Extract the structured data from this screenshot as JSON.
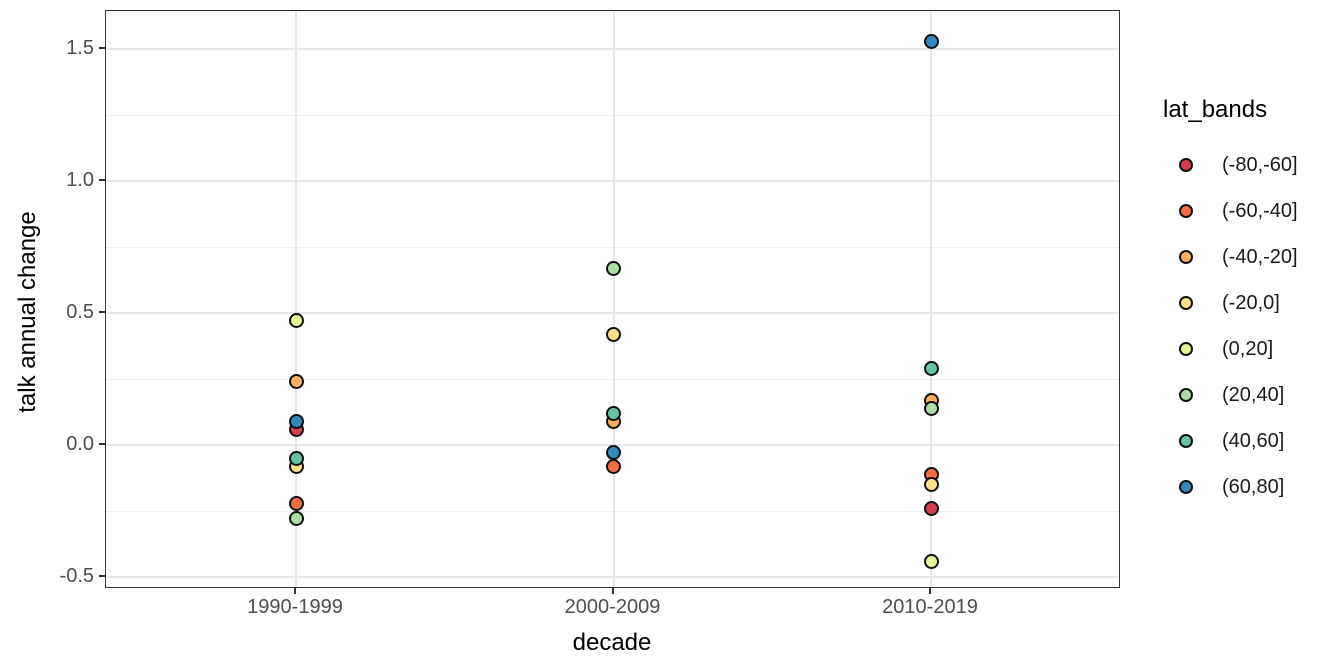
{
  "figure": {
    "xlabel": "decade",
    "ylabel": "talk annual change"
  },
  "legend": {
    "title": "lat_bands",
    "entries": [
      {
        "label": "(-80,-60]",
        "color": "#d53e4f"
      },
      {
        "label": "(-60,-40]",
        "color": "#f46d43"
      },
      {
        "label": "(-40,-20]",
        "color": "#fdae61"
      },
      {
        "label": "(-20,0]",
        "color": "#fee08b"
      },
      {
        "label": "(0,20]",
        "color": "#e6f598"
      },
      {
        "label": "(20,40]",
        "color": "#abdda4"
      },
      {
        "label": "(40,60]",
        "color": "#66c2a5"
      },
      {
        "label": "(60,80]",
        "color": "#3288bd"
      }
    ]
  },
  "chart_data": {
    "type": "scatter",
    "title": "",
    "xlabel": "decade",
    "ylabel": "talk annual change",
    "x_categories": [
      "1990-1999",
      "2000-2009",
      "2010-2019"
    ],
    "ylim": [
      -0.55,
      1.64
    ],
    "y_major_ticks": [
      {
        "label": "1.5",
        "value": 1.5
      },
      {
        "label": "1.0",
        "value": 1.0
      },
      {
        "label": "0.5",
        "value": 0.5
      },
      {
        "label": "0.0",
        "value": 0.0
      },
      {
        "label": "-0.5",
        "value": -0.5
      }
    ],
    "y_minor_ticks": [
      1.25,
      0.75,
      0.25,
      -0.25
    ],
    "grid": true,
    "legend_position": "right",
    "legend_title": "lat_bands",
    "series": [
      {
        "name": "(-80,-60]",
        "color": "#d53e4f",
        "points": [
          {
            "x": "1990-1999",
            "y": 0.06
          },
          {
            "x": "2010-2019",
            "y": -0.24
          }
        ]
      },
      {
        "name": "(-60,-40]",
        "color": "#f46d43",
        "points": [
          {
            "x": "1990-1999",
            "y": -0.22
          },
          {
            "x": "2000-2009",
            "y": -0.08
          },
          {
            "x": "2010-2019",
            "y": -0.11
          }
        ]
      },
      {
        "name": "(-40,-20]",
        "color": "#fdae61",
        "points": [
          {
            "x": "1990-1999",
            "y": 0.24
          },
          {
            "x": "2000-2009",
            "y": 0.09
          },
          {
            "x": "2010-2019",
            "y": 0.17
          }
        ]
      },
      {
        "name": "(-20,0]",
        "color": "#fee08b",
        "points": [
          {
            "x": "1990-1999",
            "y": -0.08
          },
          {
            "x": "2000-2009",
            "y": 0.42
          },
          {
            "x": "2010-2019",
            "y": -0.15
          }
        ]
      },
      {
        "name": "(0,20]",
        "color": "#e6f598",
        "points": [
          {
            "x": "1990-1999",
            "y": 0.47
          },
          {
            "x": "2010-2019",
            "y": -0.44
          }
        ]
      },
      {
        "name": "(20,40]",
        "color": "#abdda4",
        "points": [
          {
            "x": "1990-1999",
            "y": -0.28
          },
          {
            "x": "2000-2009",
            "y": 0.67
          },
          {
            "x": "2010-2019",
            "y": 0.14
          }
        ]
      },
      {
        "name": "(40,60]",
        "color": "#66c2a5",
        "points": [
          {
            "x": "1990-1999",
            "y": -0.05
          },
          {
            "x": "2000-2009",
            "y": 0.12
          },
          {
            "x": "2010-2019",
            "y": 0.29
          }
        ]
      },
      {
        "name": "(60,80]",
        "color": "#3288bd",
        "points": [
          {
            "x": "1990-1999",
            "y": 0.09
          },
          {
            "x": "2000-2009",
            "y": -0.03
          },
          {
            "x": "2010-2019",
            "y": 1.53
          }
        ]
      }
    ]
  }
}
